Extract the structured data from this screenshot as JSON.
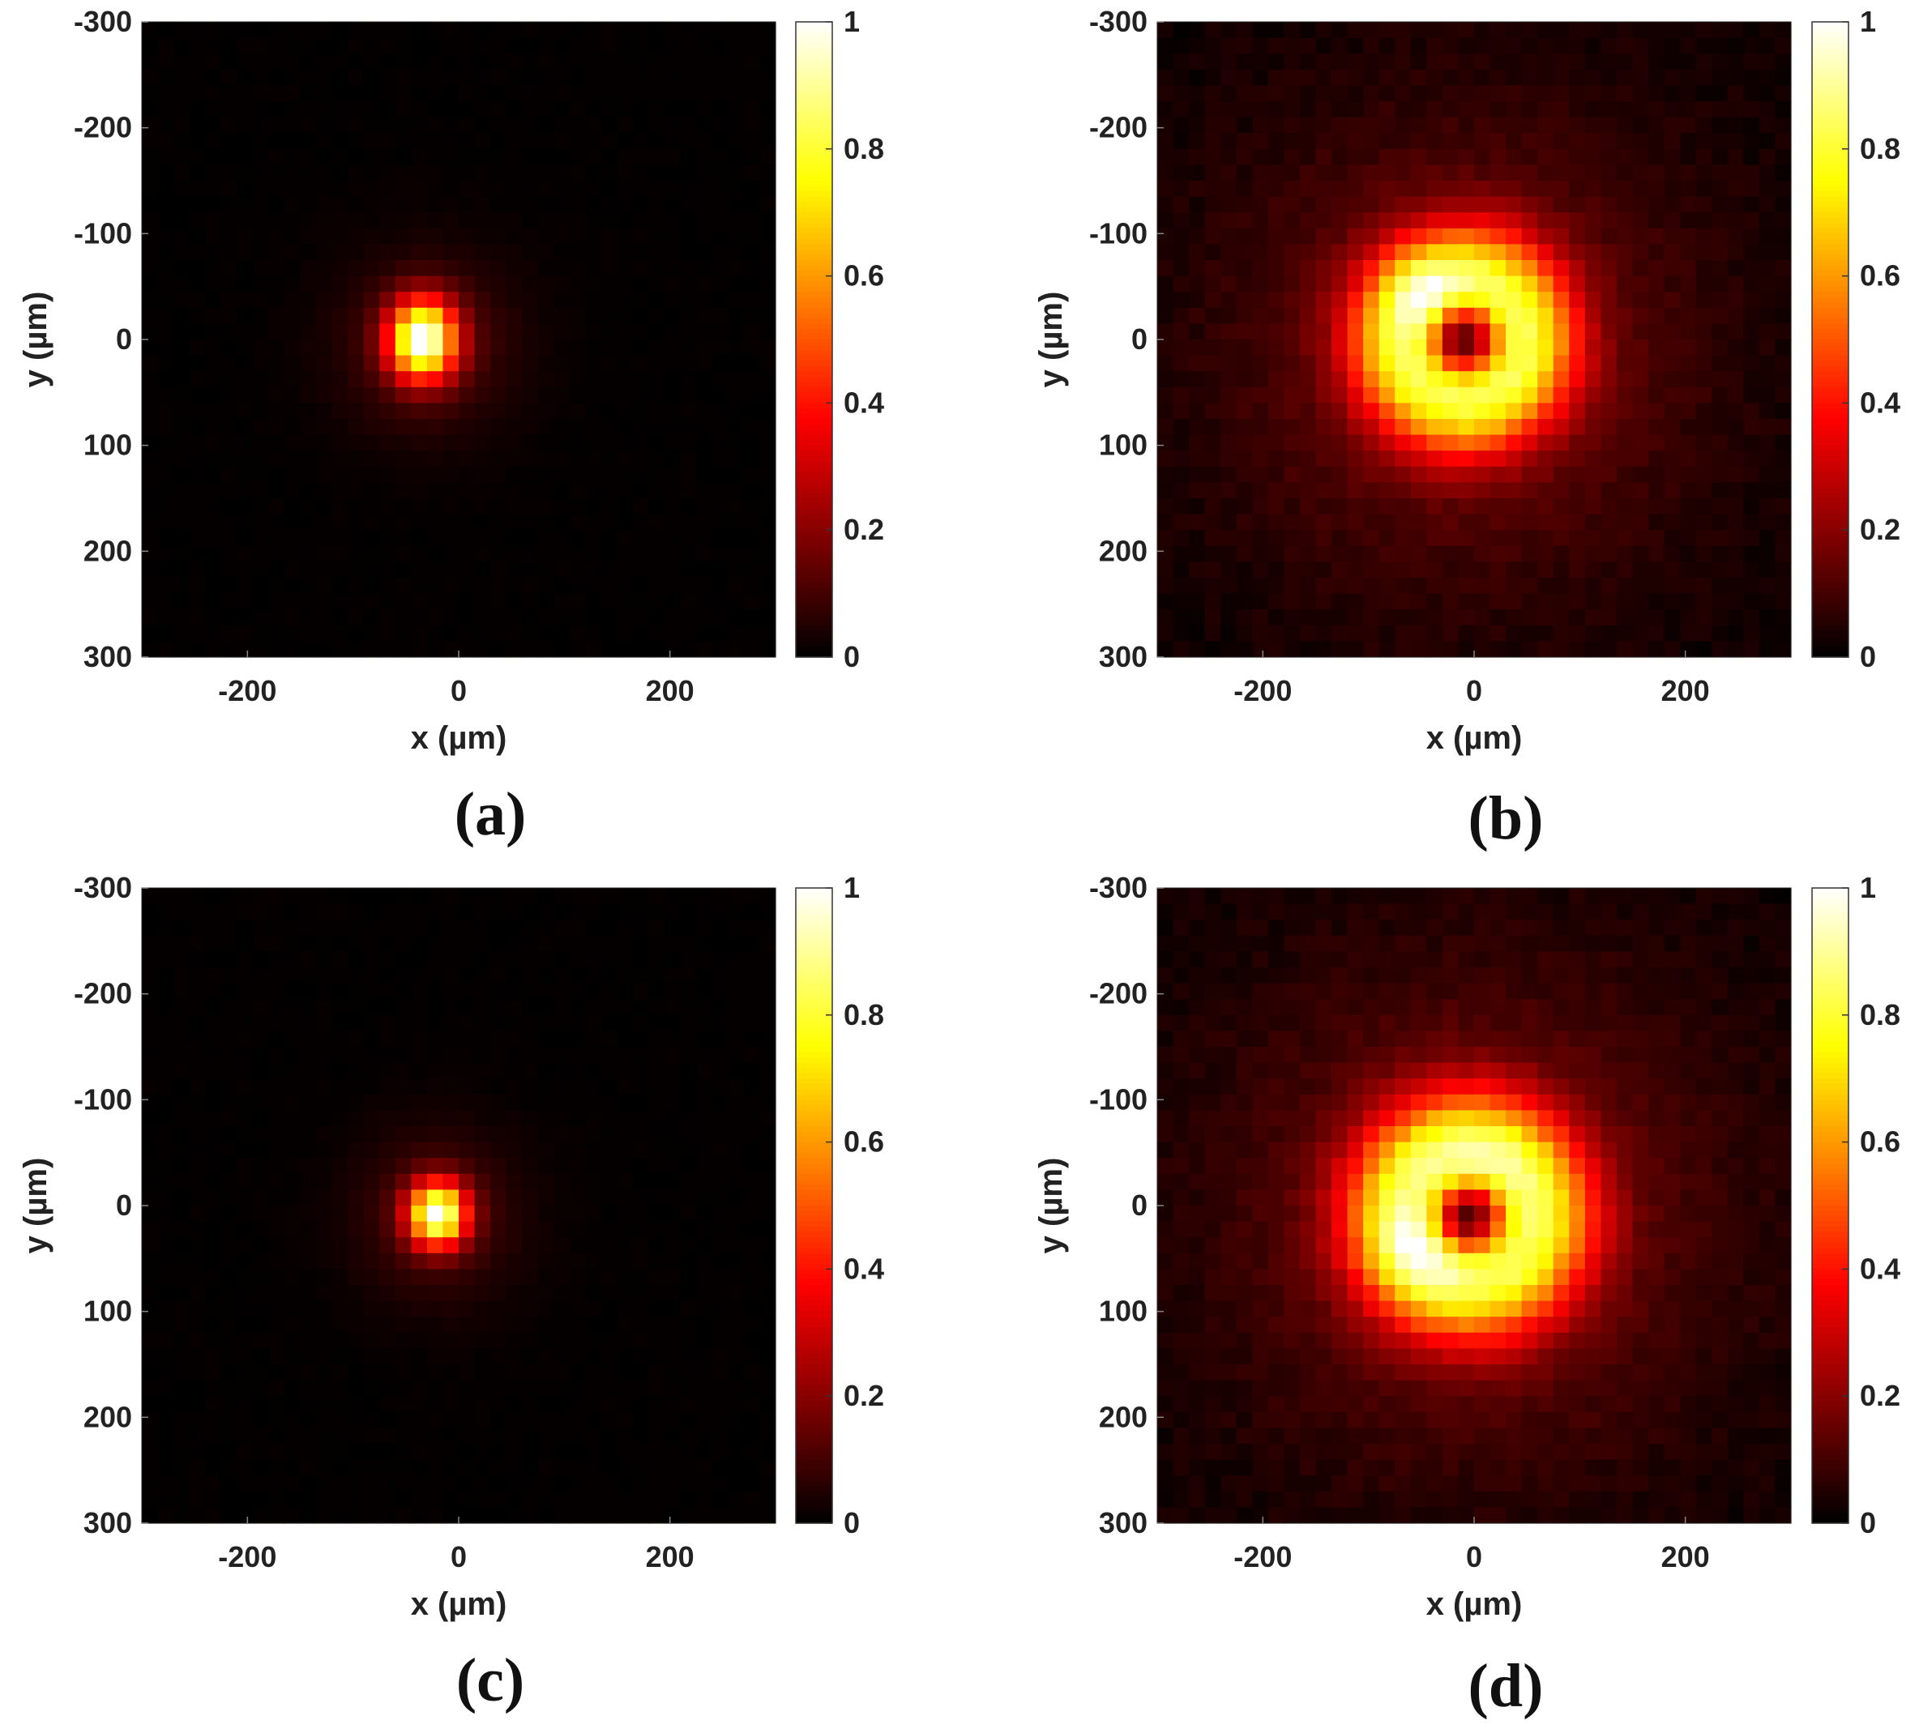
{
  "figure": {
    "panel_labels": [
      "(a)",
      "(b)",
      "(c)",
      "(d)"
    ]
  },
  "chart_data": [
    {
      "type": "heatmap",
      "panel": "(a)",
      "xlabel": "x (µm)",
      "ylabel": "y (µm)",
      "xlim": [
        -300,
        300
      ],
      "ylim": [
        -300,
        300
      ],
      "y_direction": "reversed",
      "x_ticks": [
        "-200",
        "0",
        "200"
      ],
      "y_ticks": [
        "-300",
        "-200",
        "-100",
        "0",
        "100",
        "200",
        "300"
      ],
      "grid": 40,
      "colormap": "hot",
      "colorbar": {
        "range": [
          0,
          1
        ],
        "ticks": [
          "0",
          "0.2",
          "0.4",
          "0.6",
          "0.8",
          "1"
        ]
      },
      "intensity_model": {
        "components": [
          {
            "cx": -34,
            "cy": 0,
            "sx": 22,
            "sy": 26,
            "amp": 1.0
          },
          {
            "cx": -30,
            "cy": 5,
            "sx": 60,
            "sy": 60,
            "amp": 0.12
          }
        ],
        "noise": 0.01
      }
    },
    {
      "type": "heatmap",
      "panel": "(b)",
      "xlabel": "x (µm)",
      "ylabel": "y (µm)",
      "xlim": [
        -300,
        300
      ],
      "ylim": [
        -300,
        300
      ],
      "y_direction": "reversed",
      "x_ticks": [
        "-200",
        "0",
        "200"
      ],
      "y_ticks": [
        "-300",
        "-200",
        "-100",
        "0",
        "100",
        "200",
        "300"
      ],
      "grid": 40,
      "colormap": "hot",
      "colorbar": {
        "range": [
          0,
          1
        ],
        "ticks": [
          "0",
          "0.2",
          "0.4",
          "0.6",
          "0.8",
          "1"
        ]
      },
      "intensity_model": {
        "ring": {
          "cx": -10,
          "cy": 0,
          "r": 55,
          "w": 38,
          "amp": 0.88
        },
        "components": [
          {
            "cx": -45,
            "cy": -40,
            "sx": 28,
            "sy": 28,
            "amp": 0.25
          },
          {
            "cx": -10,
            "cy": 10,
            "sx": 150,
            "sy": 150,
            "amp": 0.22
          }
        ],
        "hole": {
          "cx": -10,
          "cy": 0,
          "s": 20,
          "depth": 0.75
        },
        "noise": 0.05
      }
    },
    {
      "type": "heatmap",
      "panel": "(c)",
      "xlabel": "x (µm)",
      "ylabel": "y (µm)",
      "xlim": [
        -300,
        300
      ],
      "ylim": [
        -300,
        300
      ],
      "y_direction": "reversed",
      "x_ticks": [
        "-200",
        "0",
        "200"
      ],
      "y_ticks": [
        "-300",
        "-200",
        "-100",
        "0",
        "100",
        "200",
        "300"
      ],
      "grid": 40,
      "colormap": "hot",
      "colorbar": {
        "range": [
          0,
          1
        ],
        "ticks": [
          "0",
          "0.2",
          "0.4",
          "0.6",
          "0.8",
          "1"
        ]
      },
      "intensity_model": {
        "components": [
          {
            "cx": -20,
            "cy": 8,
            "sx": 19,
            "sy": 21,
            "amp": 1.0
          },
          {
            "cx": -20,
            "cy": 10,
            "sx": 55,
            "sy": 58,
            "amp": 0.12
          }
        ],
        "noise": 0.01
      }
    },
    {
      "type": "heatmap",
      "panel": "(d)",
      "xlabel": "x (µm)",
      "ylabel": "y (µm)",
      "xlim": [
        -300,
        300
      ],
      "ylim": [
        -300,
        300
      ],
      "y_direction": "reversed",
      "x_ticks": [
        "-200",
        "0",
        "200"
      ],
      "y_ticks": [
        "-300",
        "-200",
        "-100",
        "0",
        "100",
        "200",
        "300"
      ],
      "grid": 40,
      "colormap": "hot",
      "colorbar": {
        "range": [
          0,
          1
        ],
        "ticks": [
          "0",
          "0.2",
          "0.4",
          "0.6",
          "0.8",
          "1"
        ]
      },
      "intensity_model": {
        "ring": {
          "cx": -5,
          "cy": 10,
          "r": 60,
          "w": 42,
          "amp": 0.88
        },
        "components": [
          {
            "cx": -50,
            "cy": 40,
            "sx": 30,
            "sy": 30,
            "amp": 0.25
          },
          {
            "cx": 0,
            "cy": -40,
            "sx": 40,
            "sy": 30,
            "amp": 0.12
          },
          {
            "cx": 0,
            "cy": 10,
            "sx": 160,
            "sy": 160,
            "amp": 0.22
          }
        ],
        "hole": {
          "cx": -5,
          "cy": 10,
          "s": 20,
          "depth": 0.8
        },
        "noise": 0.05
      }
    }
  ]
}
